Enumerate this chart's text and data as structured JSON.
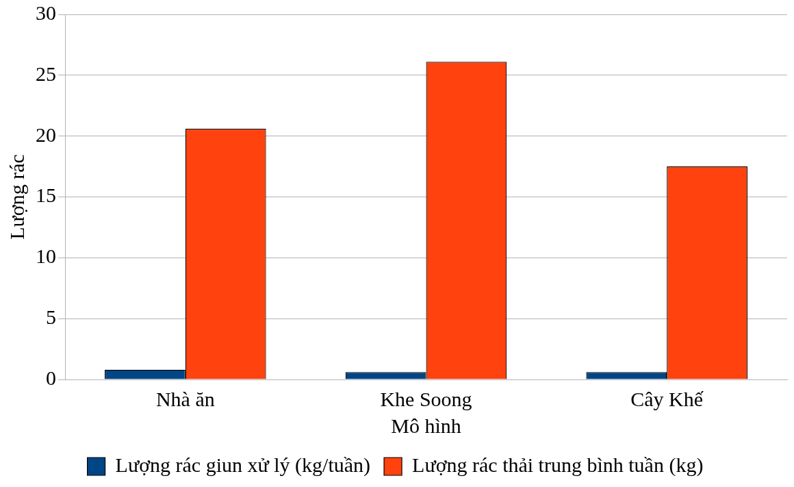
{
  "chart_data": {
    "type": "bar",
    "xlabel": "Mô hình",
    "ylabel": "Lượng rác",
    "categories": [
      "Nhà ăn",
      "Khe Soong",
      "Cây Khế"
    ],
    "series": [
      {
        "name": "Lượng rác giun xử lý (kg/tuần)",
        "color": "#004586",
        "values": [
          0.8,
          0.6,
          0.6
        ]
      },
      {
        "name": "Lượng rác thải trung bình tuần (kg)",
        "color": "#ff420e",
        "values": [
          20.6,
          26.1,
          17.5
        ]
      }
    ],
    "ylim": [
      0,
      30
    ],
    "yticks": [
      0,
      5,
      10,
      15,
      20,
      25,
      30
    ],
    "grid": "y",
    "legend": "bottom"
  }
}
